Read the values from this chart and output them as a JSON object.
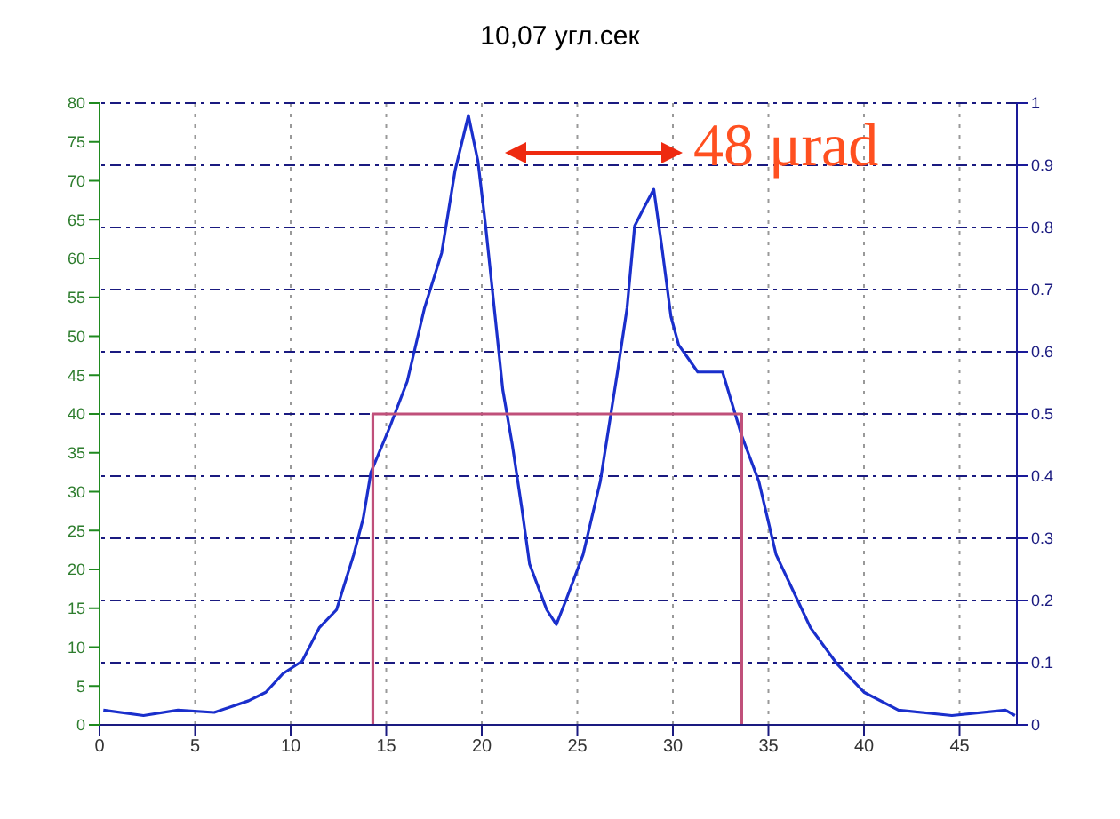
{
  "chart_data": {
    "type": "line",
    "title": "10,07 угл.сек",
    "annotations": [
      "48 μrad"
    ],
    "xlim": [
      0,
      48
    ],
    "xticks": [
      0,
      5,
      10,
      15,
      20,
      25,
      30,
      35,
      40,
      45
    ],
    "ylim": [
      0,
      80
    ],
    "yticks": [
      0,
      5,
      10,
      15,
      20,
      25,
      30,
      35,
      40,
      45,
      50,
      55,
      60,
      65,
      70,
      75,
      80
    ],
    "y2lim": [
      0,
      1
    ],
    "y2ticks": [
      0,
      0.1,
      0.2,
      0.3,
      0.4,
      0.5,
      0.6,
      0.7,
      0.8,
      0.9,
      1
    ],
    "grid": true,
    "marker": "none",
    "line_style": "solid",
    "series": [
      {
        "color": "#1a2fcc",
        "x": [
          0.2,
          2.3,
          4.1,
          6.0,
          7.8,
          8.7,
          9.6,
          10.6,
          11.5,
          12.4,
          13.3,
          13.8,
          14.2,
          15.2,
          16.1,
          17.0,
          17.9,
          18.6,
          19.3,
          19.8,
          20.2,
          20.7,
          21.1,
          21.6,
          22.1,
          22.5,
          23.4,
          23.9,
          24.4,
          25.3,
          26.2,
          27.1,
          27.6,
          28.0,
          28.5,
          29.0,
          29.4,
          29.9,
          30.3,
          31.3,
          32.6,
          33.6,
          34.5,
          35.4,
          36.3,
          37.2,
          38.6,
          40.0,
          41.8,
          44.6,
          47.4,
          47.9
        ],
        "values": [
          1.9,
          1.2,
          1.9,
          1.6,
          3.1,
          4.2,
          6.6,
          8.2,
          12.5,
          14.8,
          21.9,
          26.6,
          32.5,
          38.4,
          44.2,
          53.6,
          60.7,
          71.3,
          78.4,
          72.5,
          64.2,
          52.5,
          43.1,
          36,
          27.8,
          20.7,
          14.8,
          12.9,
          16,
          21.9,
          31.3,
          45.4,
          53.6,
          64.2,
          66.6,
          68.9,
          61.9,
          52.5,
          48.9,
          45.4,
          45.4,
          37.2,
          31.3,
          21.9,
          17.2,
          12.5,
          7.8,
          4.2,
          1.9,
          1.2,
          1.9,
          1.2
        ]
      },
      {
        "color": "#c0507a",
        "x": [
          14.3,
          14.3,
          33.6,
          33.6
        ],
        "values": [
          0,
          40,
          40,
          0
        ]
      }
    ]
  }
}
